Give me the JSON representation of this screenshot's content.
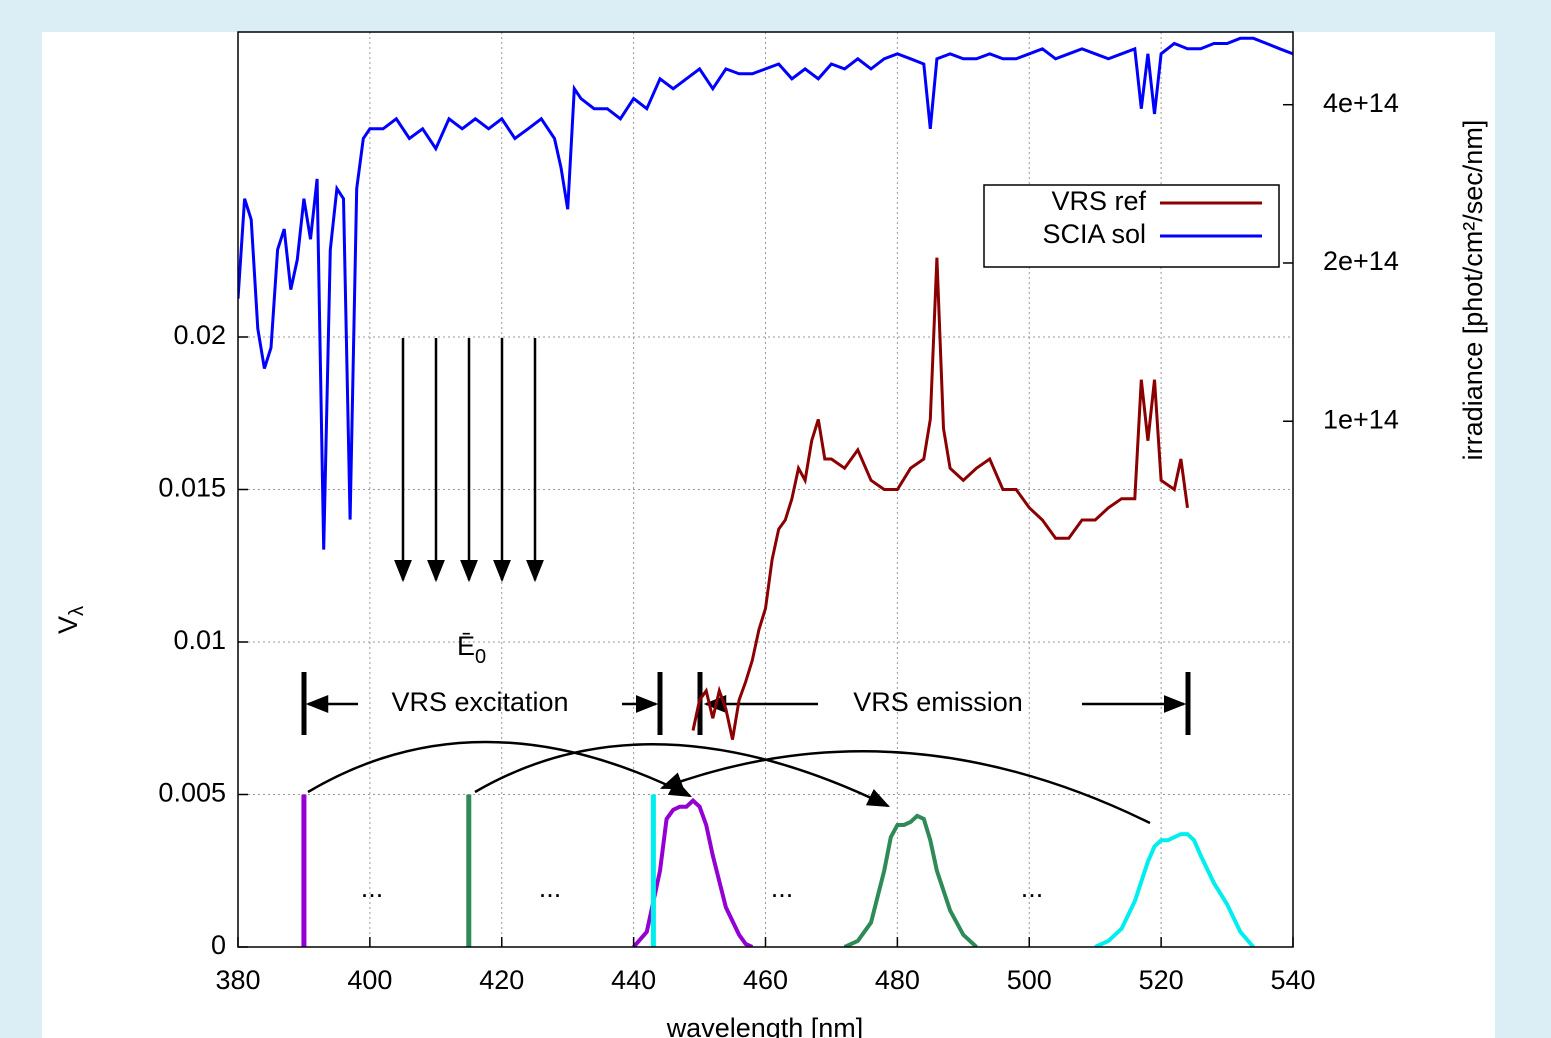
{
  "chart_data": {
    "type": "line",
    "x_label": "wavelength [nm]",
    "y_label": "V",
    "y_label_sub": "λ",
    "y2_label": "irradiance [phot/cm²/sec/nm]",
    "xlim": [
      380,
      540
    ],
    "xticks": [
      380,
      400,
      420,
      440,
      460,
      480,
      500,
      520,
      540
    ],
    "ylim": [
      0,
      0.03
    ],
    "yticks": [
      0,
      0.005,
      0.01,
      0.015,
      0.02
    ],
    "y2lim": [
      10000000000000.0,
      550000000000000.0
    ],
    "y2_log": true,
    "y2ticks": [
      {
        "value": 100000000000000.0,
        "label": "1e+14"
      },
      {
        "value": 200000000000000.0,
        "label": "2e+14"
      },
      {
        "value": 400000000000000.0,
        "label": "4e+14"
      }
    ],
    "grid": true,
    "legend": "upper right",
    "series": [
      {
        "name": "VRS ref",
        "color": "#8b0000",
        "x": [
          449,
          450,
          451,
          452,
          453,
          454,
          455,
          456,
          457,
          458,
          459,
          460,
          461,
          462,
          463,
          464,
          465,
          466,
          467,
          468,
          469,
          470,
          472,
          474,
          476,
          478,
          480,
          482,
          484,
          485,
          486,
          487,
          488,
          490,
          492,
          494,
          496,
          498,
          500,
          502,
          504,
          506,
          508,
          510,
          512,
          514,
          516,
          517,
          518,
          519,
          520,
          522,
          523,
          524
        ],
        "values": [
          0.0071,
          0.0081,
          0.0084,
          0.0075,
          0.0084,
          0.0078,
          0.0068,
          0.0081,
          0.0087,
          0.0094,
          0.0104,
          0.0111,
          0.0127,
          0.0137,
          0.014,
          0.0147,
          0.0157,
          0.0153,
          0.0166,
          0.0173,
          0.016,
          0.016,
          0.0157,
          0.0163,
          0.0153,
          0.015,
          0.015,
          0.0157,
          0.016,
          0.0173,
          0.0226,
          0.017,
          0.0157,
          0.0153,
          0.0157,
          0.016,
          0.015,
          0.015,
          0.0144,
          0.014,
          0.0134,
          0.0134,
          0.014,
          0.014,
          0.0144,
          0.0147,
          0.0147,
          0.0186,
          0.0166,
          0.0186,
          0.0153,
          0.015,
          0.016,
          0.0144
        ]
      },
      {
        "name": "SCIA sol",
        "color": "#0000ff",
        "axis": "y2",
        "x": [
          380,
          381,
          382,
          383,
          384,
          385,
          386,
          387,
          388,
          389,
          390,
          391,
          392,
          393,
          394,
          395,
          396,
          397,
          398,
          399,
          400,
          402,
          404,
          406,
          408,
          410,
          412,
          414,
          416,
          418,
          420,
          422,
          424,
          426,
          428,
          429,
          430,
          431,
          432,
          434,
          436,
          438,
          440,
          442,
          444,
          446,
          448,
          450,
          452,
          454,
          456,
          458,
          460,
          462,
          464,
          466,
          468,
          470,
          472,
          474,
          476,
          478,
          480,
          482,
          484,
          485,
          486,
          488,
          490,
          492,
          494,
          496,
          498,
          500,
          502,
          504,
          506,
          508,
          510,
          512,
          514,
          516,
          517,
          518,
          519,
          520,
          522,
          524,
          526,
          528,
          530,
          532,
          534,
          536,
          538,
          540
        ],
        "values": [
          171000000000000.0,
          265000000000000.0,
          242000000000000.0,
          150000000000000.0,
          126000000000000.0,
          138000000000000.0,
          212000000000000.0,
          232000000000000.0,
          178000000000000.0,
          203000000000000.0,
          265000000000000.0,
          222000000000000.0,
          289000000000000.0,
          57000000000000.0,
          212000000000000.0,
          277000000000000.0,
          265000000000000.0,
          65000000000000.0,
          277000000000000.0,
          345000000000000.0,
          360000000000000.0,
          360000000000000.0,
          376000000000000.0,
          345000000000000.0,
          360000000000000.0,
          330000000000000.0,
          376000000000000.0,
          360000000000000.0,
          376000000000000.0,
          360000000000000.0,
          376000000000000.0,
          345000000000000.0,
          360000000000000.0,
          376000000000000.0,
          345000000000000.0,
          303000000000000.0,
          253000000000000.0,
          429000000000000.0,
          411000000000000.0,
          393000000000000.0,
          393000000000000.0,
          376000000000000.0,
          411000000000000.0,
          393000000000000.0,
          448000000000000.0,
          429000000000000.0,
          448000000000000.0,
          468000000000000.0,
          429000000000000.0,
          468000000000000.0,
          458000000000000.0,
          458000000000000.0,
          468000000000000.0,
          478000000000000.0,
          448000000000000.0,
          468000000000000.0,
          448000000000000.0,
          478000000000000.0,
          468000000000000.0,
          489000000000000.0,
          468000000000000.0,
          489000000000000.0,
          500000000000000.0,
          489000000000000.0,
          478000000000000.0,
          360000000000000.0,
          489000000000000.0,
          500000000000000.0,
          489000000000000.0,
          489000000000000.0,
          500000000000000.0,
          489000000000000.0,
          489000000000000.0,
          500000000000000.0,
          511000000000000.0,
          489000000000000.0,
          500000000000000.0,
          511000000000000.0,
          500000000000000.0,
          489000000000000.0,
          500000000000000.0,
          511000000000000.0,
          393000000000000.0,
          500000000000000.0,
          384000000000000.0,
          500000000000000.0,
          523000000000000.0,
          511000000000000.0,
          511000000000000.0,
          523000000000000.0,
          523000000000000.0,
          535000000000000.0,
          535000000000000.0,
          523000000000000.0,
          511000000000000.0,
          500000000000000.0
        ]
      }
    ],
    "bands": [
      {
        "color": "#9400d3",
        "x": [
          440,
          442,
          444,
          445,
          446,
          447,
          448,
          449,
          450,
          451,
          452,
          454,
          456,
          457,
          458
        ],
        "values": [
          0,
          0.0005,
          0.0025,
          0.0042,
          0.0045,
          0.0046,
          0.0046,
          0.0048,
          0.0046,
          0.004,
          0.003,
          0.0013,
          0.0004,
          0.0001,
          0
        ]
      },
      {
        "color": "#2e8b57",
        "x": [
          472,
          474,
          476,
          478,
          479,
          480,
          481,
          482,
          483,
          484,
          485,
          486,
          488,
          490,
          492
        ],
        "values": [
          0,
          0.0002,
          0.0008,
          0.0025,
          0.0036,
          0.004,
          0.004,
          0.0041,
          0.0043,
          0.0042,
          0.0035,
          0.0025,
          0.0012,
          0.0004,
          0
        ]
      },
      {
        "color": "#00eeee",
        "x": [
          510,
          512,
          514,
          516,
          518,
          519,
          520,
          521,
          522,
          523,
          524,
          525,
          526,
          528,
          530,
          532,
          534
        ],
        "values": [
          0,
          0.0002,
          0.0006,
          0.0015,
          0.0028,
          0.0033,
          0.0035,
          0.0035,
          0.0036,
          0.0037,
          0.0037,
          0.0035,
          0.003,
          0.0021,
          0.0014,
          0.0005,
          0
        ]
      }
    ],
    "vlines": [
      {
        "x": 390,
        "value": 0.005,
        "color": "#9400d3"
      },
      {
        "x": 415,
        "value": 0.005,
        "color": "#2e8b57"
      },
      {
        "x": 443,
        "value": 0.005,
        "color": "#00eeee"
      }
    ],
    "annotations": [
      "VRS excitation",
      "VRS emission"
    ],
    "e0_label": "Ē",
    "e0_sub": "0",
    "dots": [
      "...",
      "...",
      "...",
      "..."
    ]
  }
}
